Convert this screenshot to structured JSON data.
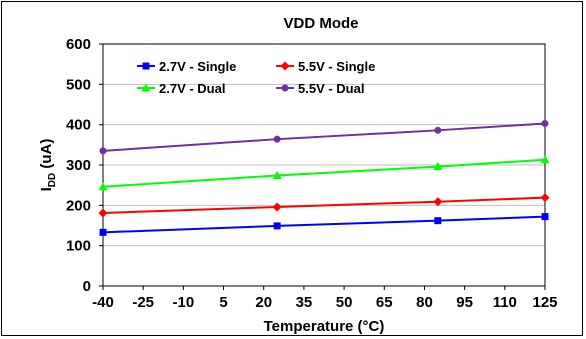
{
  "chart_data": {
    "type": "line",
    "title": "VDD Mode",
    "xlabel": "Temperature (°C)",
    "ylabel": {
      "main": "I",
      "sub": "DD",
      "unit": " (uA)"
    },
    "xlim": [
      -40,
      125
    ],
    "ylim": [
      0,
      600
    ],
    "x_ticks": [
      -40,
      -25,
      -10,
      5,
      20,
      35,
      50,
      65,
      80,
      95,
      110,
      125
    ],
    "y_ticks": [
      0,
      100,
      200,
      300,
      400,
      500,
      600
    ],
    "grid": {
      "horizontal": true,
      "vertical": false
    },
    "legend_position": "top-left",
    "series": [
      {
        "name": "2.7V - Single",
        "color": "#0000ff",
        "marker": "square",
        "x": [
          -40,
          25,
          85,
          125
        ],
        "y": [
          133,
          149,
          162,
          172
        ]
      },
      {
        "name": "5.5V - Single",
        "color": "#ff0000",
        "marker": "diamond",
        "x": [
          -40,
          25,
          85,
          125
        ],
        "y": [
          181,
          196,
          209,
          219
        ]
      },
      {
        "name": "2.7V - Dual",
        "color": "#00ff00",
        "marker": "triangle",
        "x": [
          -40,
          25,
          85,
          125
        ],
        "y": [
          246,
          274,
          296,
          313
        ]
      },
      {
        "name": "5.5V - Dual",
        "color": "#7030a0",
        "marker": "circle",
        "x": [
          -40,
          25,
          85,
          125
        ],
        "y": [
          335,
          364,
          386,
          403
        ]
      }
    ]
  }
}
